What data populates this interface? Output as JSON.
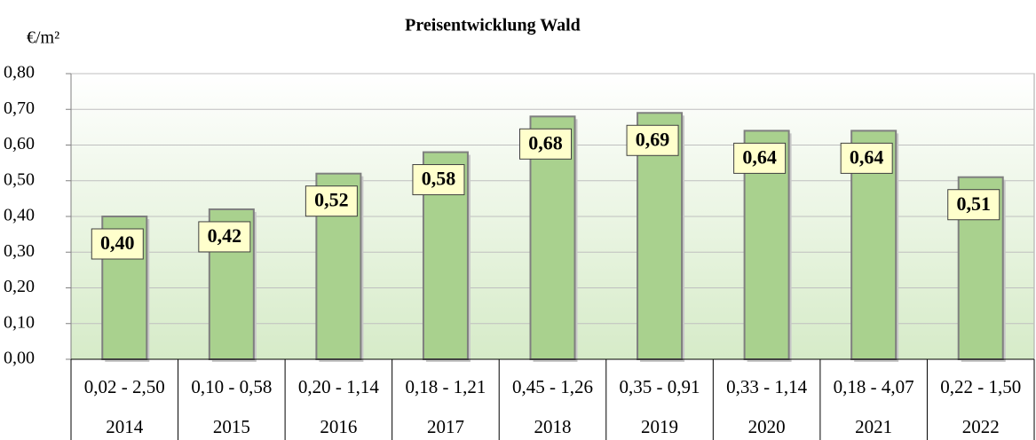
{
  "chart_data": {
    "type": "bar",
    "title": "Preisentwicklung Wald",
    "y_label": "€/m²",
    "categories": [
      "2014",
      "2015",
      "2016",
      "2017",
      "2018",
      "2019",
      "2020",
      "2021",
      "2022"
    ],
    "ranges": [
      "0,02 - 2,50",
      "0,10 - 0,58",
      "0,20 - 1,14",
      "0,18 - 1,21",
      "0,45 - 1,26",
      "0,35 - 0,91",
      "0,33 - 1,14",
      "0,18 - 4,07",
      "0,22 - 1,50"
    ],
    "values": [
      0.4,
      0.42,
      0.52,
      0.58,
      0.68,
      0.69,
      0.64,
      0.64,
      0.51
    ],
    "value_labels": [
      "0,40",
      "0,42",
      "0,52",
      "0,58",
      "0,68",
      "0,69",
      "0,64",
      "0,64",
      "0,51"
    ],
    "color": "#a9d18e",
    "ylim": [
      0,
      0.8
    ],
    "yticks": [
      {
        "value": 0,
        "label": "0,00"
      },
      {
        "value": 0.1,
        "label": "0,10"
      },
      {
        "value": 0.2,
        "label": "0,20"
      },
      {
        "value": 0.3,
        "label": "0,30"
      },
      {
        "value": 0.4,
        "label": "0,40"
      },
      {
        "value": 0.5,
        "label": "0,50"
      },
      {
        "value": 0.6,
        "label": "0,60"
      },
      {
        "value": 0.7,
        "label": "0,70"
      },
      {
        "value": 0.8,
        "label": "0,80"
      }
    ],
    "grid": true
  }
}
